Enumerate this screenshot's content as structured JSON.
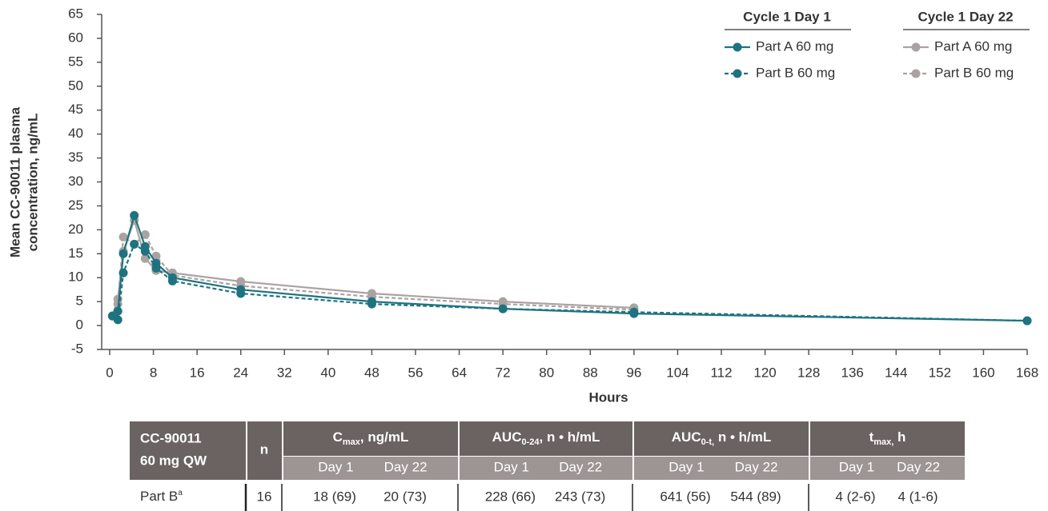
{
  "chart_data": {
    "type": "line",
    "ylabel": [
      "Mean CC-90011 plasma",
      "concentration, ng/mL"
    ],
    "xlabel": "Hours",
    "xlim": [
      0,
      168
    ],
    "xticks": [
      0,
      8,
      16,
      24,
      32,
      40,
      48,
      56,
      64,
      72,
      80,
      88,
      96,
      104,
      112,
      120,
      128,
      136,
      144,
      152,
      160,
      168
    ],
    "ylim": [
      -5,
      65
    ],
    "yticks": [
      -5,
      0,
      5,
      10,
      15,
      20,
      25,
      30,
      35,
      40,
      45,
      50,
      55,
      60,
      65
    ],
    "legend_titles": [
      "Cycle 1 Day 1",
      "Cycle 1 Day 22"
    ],
    "x": [
      0.5,
      1.5,
      2.5,
      4.5,
      6.5,
      8.5,
      11.5,
      24,
      48,
      72,
      96,
      168
    ],
    "series": [
      {
        "name": "Part A 60 mg",
        "color": "#1f7380",
        "dash": false,
        "values": [
          2,
          3,
          15,
          23,
          16.5,
          13,
          10,
          7.5,
          5,
          3.5,
          2.5,
          1
        ]
      },
      {
        "name": "Part B 60 mg",
        "color": "#1f7380",
        "dash": true,
        "values": [
          2,
          1.2,
          11,
          17,
          15.5,
          12,
          9.3,
          6.7,
          4.5,
          3.5,
          2.8,
          1
        ]
      },
      {
        "name": "Part A 60 mg",
        "color": "#aaa3a2",
        "dash": false,
        "values": [
          2,
          5.5,
          15.5,
          22,
          14,
          11.5,
          11,
          9.2,
          6.7,
          5,
          3.7,
          null
        ]
      },
      {
        "name": "Part B 60 mg",
        "color": "#aaa3a2",
        "dash": true,
        "values": [
          2,
          4.5,
          18.5,
          17,
          19,
          14.5,
          10.5,
          8.3,
          6,
          4.5,
          3.3,
          null
        ]
      }
    ]
  },
  "table": {
    "row_header": [
      "CC-90011",
      "60 mg QW"
    ],
    "n_header": "n",
    "groups": [
      {
        "main": "C",
        "sub": "max",
        "rest": ", ng/mL",
        "days": [
          "Day 1",
          "Day 22"
        ]
      },
      {
        "main": "AUC",
        "sub": "0-24",
        "rest": ", n • h/mL",
        "days": [
          "Day 1",
          "Day 22"
        ]
      },
      {
        "main": "AUC",
        "sub": "0-t,",
        "rest": " n • h/mL",
        "days": [
          "Day 1",
          "Day 22"
        ]
      },
      {
        "main": "t",
        "sub": "max,",
        "rest": " h",
        "days": [
          "Day 1",
          "Day 22"
        ]
      }
    ],
    "rows": [
      {
        "label": "Part B",
        "sup": "a",
        "n": 16,
        "cells": [
          "18 (69)",
          "20 (73)",
          "228 (66)",
          "243 (73)",
          "641 (56)",
          "544 (89)",
          "4 (2-6)",
          "4 (1-6)"
        ]
      }
    ]
  }
}
